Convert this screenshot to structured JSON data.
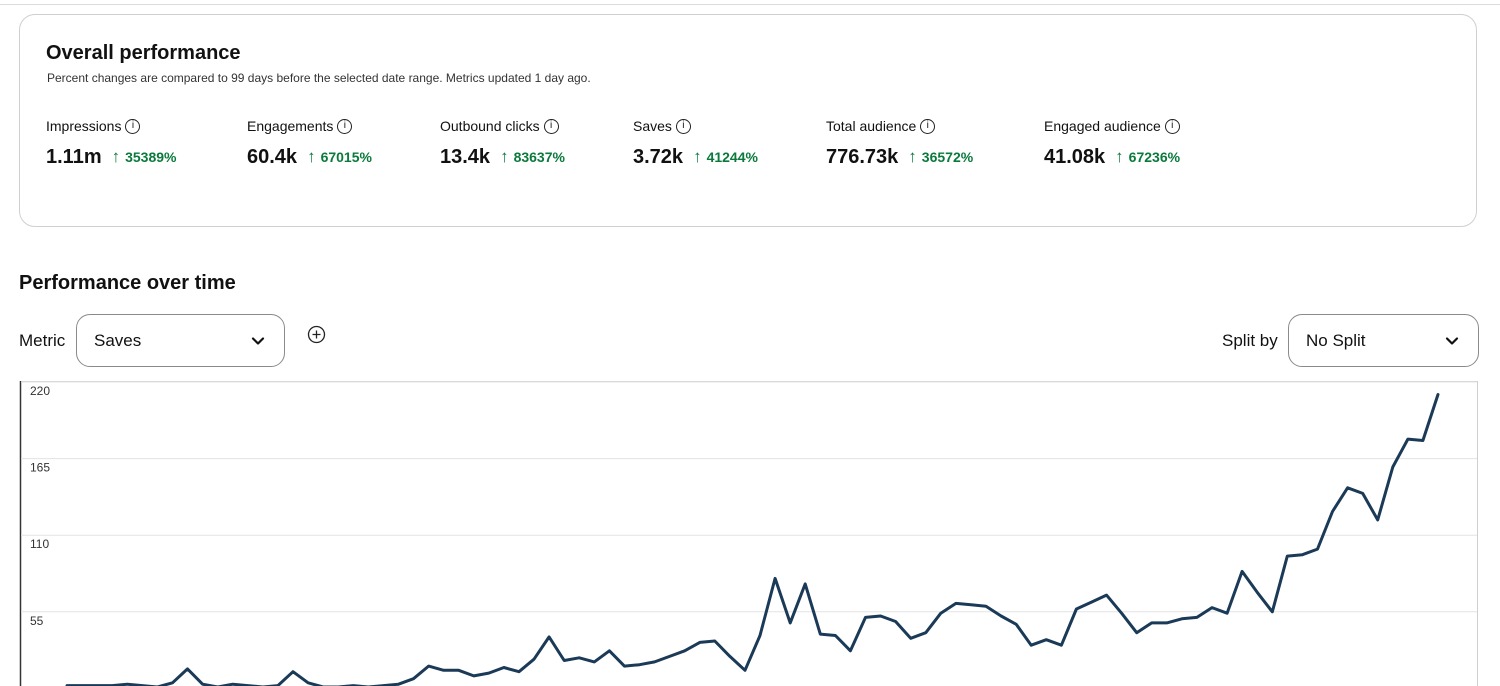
{
  "overall": {
    "title": "Overall performance",
    "subtitle": "Percent changes are compared to 99 days before the selected date range. Metrics updated 1 day ago.",
    "metrics": [
      {
        "label": "Impressions",
        "value": "1.11m",
        "change": "35389%",
        "icon": "info-icon"
      },
      {
        "label": "Engagements",
        "value": "60.4k",
        "change": "67015%",
        "icon": "info-icon"
      },
      {
        "label": "Outbound clicks",
        "value": "13.4k",
        "change": "83637%",
        "icon": "info-icon"
      },
      {
        "label": "Saves",
        "value": "3.72k",
        "change": "41244%",
        "icon": "info-icon"
      },
      {
        "label": "Total audience",
        "value": "776.73k",
        "change": "36572%",
        "icon": "info-icon"
      },
      {
        "label": "Engaged audience",
        "value": "41.08k",
        "change": "67236%",
        "icon": "info-icon"
      }
    ],
    "change_color": "#0a7a3b"
  },
  "performance": {
    "title": "Performance over time",
    "metric_label": "Metric",
    "metric_value": "Saves",
    "split_label": "Split by",
    "split_value": "No Split"
  },
  "chart_data": {
    "type": "line",
    "color": "#1b3a57",
    "grid": true,
    "yticks": [
      "220",
      "165",
      "110",
      "55"
    ],
    "ylim": [
      0,
      220
    ],
    "values": [
      2,
      2,
      2,
      2,
      3,
      2,
      1,
      4,
      14,
      3,
      1,
      3,
      2,
      1,
      2,
      12,
      4,
      1,
      1,
      2,
      1,
      2,
      3,
      7,
      16,
      13,
      13,
      9,
      11,
      15,
      12,
      21,
      37,
      20,
      22,
      19,
      27,
      16,
      17,
      19,
      23,
      27,
      33,
      34,
      23,
      13,
      38,
      79,
      47,
      75,
      39,
      38,
      27,
      51,
      52,
      48,
      36,
      40,
      54,
      61,
      60,
      59,
      52,
      46,
      31,
      35,
      31,
      57,
      62,
      67,
      54,
      40,
      47,
      47,
      50,
      51,
      58,
      54,
      84,
      69,
      55,
      95,
      96,
      100,
      127,
      144,
      140,
      121,
      159,
      179,
      178,
      211
    ]
  }
}
